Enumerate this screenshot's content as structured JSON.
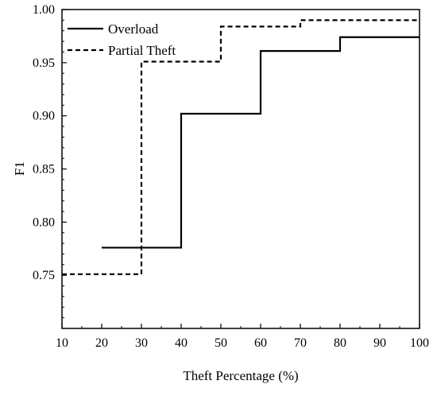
{
  "chart_data": {
    "type": "line",
    "xlabel": "Theft Percentage (%)",
    "ylabel": "F1",
    "xlim": [
      10,
      100
    ],
    "ylim": [
      0.7,
      1.0
    ],
    "xticks": [
      "10",
      "20",
      "30",
      "40",
      "50",
      "60",
      "70",
      "80",
      "90",
      "100"
    ],
    "yticks": [
      "0.75",
      "0.80",
      "0.85",
      "0.90",
      "0.95",
      "1.00"
    ],
    "grid": false,
    "legend_position": "top-left",
    "series": [
      {
        "name": "Overload",
        "style": "solid",
        "color": "#000000",
        "step": "post",
        "x": [
          20,
          40,
          60,
          80,
          100
        ],
        "y": [
          0.776,
          0.902,
          0.961,
          0.974,
          0.974
        ]
      },
      {
        "name": "Partial Theft",
        "style": "dashed",
        "color": "#000000",
        "step": "post",
        "x": [
          10,
          30,
          50,
          70,
          100
        ],
        "y": [
          0.751,
          0.951,
          0.984,
          0.99,
          0.99
        ]
      }
    ]
  }
}
